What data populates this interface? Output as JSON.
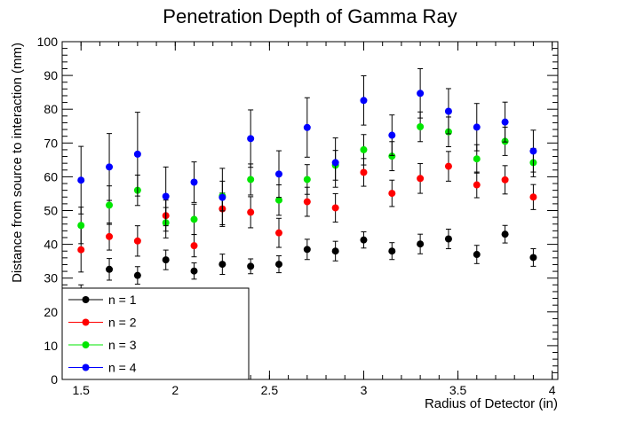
{
  "chart_data": {
    "type": "scatter",
    "title": "Penetration Depth of Gamma Ray",
    "xlabel": "Radius of Detector (in)",
    "ylabel": "Distance from source to interaction (mm)",
    "xlim": [
      1.4,
      4.03
    ],
    "ylim": [
      0,
      100
    ],
    "xticks": [
      "1.5",
      "2",
      "2.5",
      "3",
      "3.5",
      "4"
    ],
    "yticks": [
      "0",
      "10",
      "20",
      "30",
      "40",
      "50",
      "60",
      "70",
      "80",
      "90",
      "100"
    ],
    "grid": false,
    "legend_position": "bottom-left",
    "x": [
      1.5,
      1.65,
      1.8,
      1.95,
      2.1,
      2.25,
      2.4,
      2.55,
      2.7,
      2.85,
      3.0,
      3.15,
      3.3,
      3.45,
      3.6,
      3.75,
      3.9
    ],
    "series": [
      {
        "name": "n = 1",
        "color": "#000000",
        "values": [
          23.0,
          32.6,
          30.8,
          35.4,
          32.1,
          34.1,
          33.5,
          34.1,
          38.5,
          38.0,
          41.3,
          38.0,
          40.1,
          41.6,
          37.0,
          43.0,
          36.1
        ],
        "errors": [
          5.0,
          3.2,
          2.6,
          2.9,
          2.4,
          3.0,
          2.2,
          2.5,
          3.0,
          2.9,
          2.4,
          2.5,
          2.9,
          2.9,
          2.7,
          2.6,
          2.6
        ]
      },
      {
        "name": "n = 2",
        "color": "#ff0000",
        "values": [
          38.4,
          42.3,
          41.0,
          48.5,
          39.6,
          50.5,
          49.5,
          43.4,
          52.6,
          50.8,
          61.3,
          55.1,
          59.5,
          63.1,
          57.6,
          59.1,
          54.0
        ],
        "errors": [
          6.6,
          4.0,
          4.5,
          4.6,
          3.3,
          4.7,
          4.6,
          4.3,
          4.3,
          4.2,
          4.1,
          3.9,
          4.4,
          4.4,
          3.8,
          4.2,
          3.7
        ]
      },
      {
        "name": "n = 3",
        "color": "#00e600",
        "values": [
          45.6,
          51.6,
          56.0,
          46.4,
          47.4,
          54.3,
          59.2,
          53.1,
          59.2,
          63.4,
          68.0,
          66.1,
          74.8,
          73.3,
          65.3,
          70.5,
          64.2
        ],
        "errors": [
          5.4,
          5.7,
          4.5,
          4.5,
          4.5,
          4.4,
          4.6,
          4.5,
          4.4,
          4.4,
          4.5,
          4.3,
          4.4,
          4.4,
          4.2,
          4.2,
          4.2
        ]
      },
      {
        "name": "n = 4",
        "color": "#0000ff",
        "values": [
          59.0,
          62.9,
          66.7,
          54.2,
          58.4,
          53.9,
          71.3,
          60.8,
          74.6,
          64.2,
          82.6,
          72.3,
          84.7,
          79.4,
          74.7,
          76.2,
          67.6
        ],
        "errors": [
          10.0,
          9.9,
          12.4,
          8.7,
          6.0,
          8.6,
          8.5,
          6.9,
          8.8,
          7.3,
          7.3,
          6.0,
          7.3,
          6.7,
          7.0,
          5.9,
          6.2
        ]
      }
    ]
  }
}
